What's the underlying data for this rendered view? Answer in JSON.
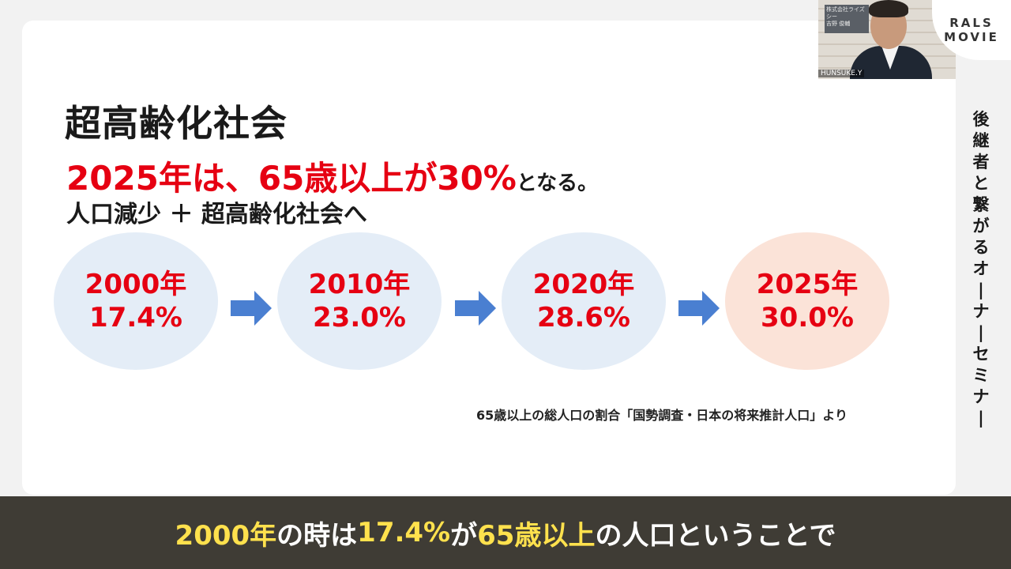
{
  "slide": {
    "title": "超高齢化社会",
    "headline_main": "2025年は、65歳以上が30%",
    "headline_tail": "となる。",
    "subline": "人口減少 ＋ 超高齢化社会へ",
    "source": "65歳以上の総人口の割合「国勢調査・日本の将来推計人口」より"
  },
  "chart_data": {
    "type": "table",
    "title": "",
    "categories": [
      "2000年",
      "2010年",
      "2020年",
      "2025年"
    ],
    "labels": [
      "17.4%",
      "23.0%",
      "28.6%",
      "30.0%"
    ],
    "values": [
      17.4,
      23.0,
      28.6,
      30.0
    ],
    "highlight": "2025年",
    "colors": {
      "circle": "#e4edf7",
      "highlight": "#fbe3d8",
      "text": "#e60012",
      "arrow": "#4a7fd1"
    }
  },
  "sidebar": {
    "vertical_title": "後継者と繋がるオーナーセミナー"
  },
  "video": {
    "speaker_label": "HUNSUKE.Y",
    "nameplate_line1": "株式会社ライズシー",
    "nameplate_line2": "吉野 俊輔"
  },
  "logo": {
    "line1": "RALS",
    "line2": "MOVIE"
  },
  "caption": {
    "part1": "2000年",
    "part2": "の時は",
    "part3": "17.4%",
    "part4": "が",
    "part5": "65歳以上",
    "part6": "の人口ということで"
  }
}
